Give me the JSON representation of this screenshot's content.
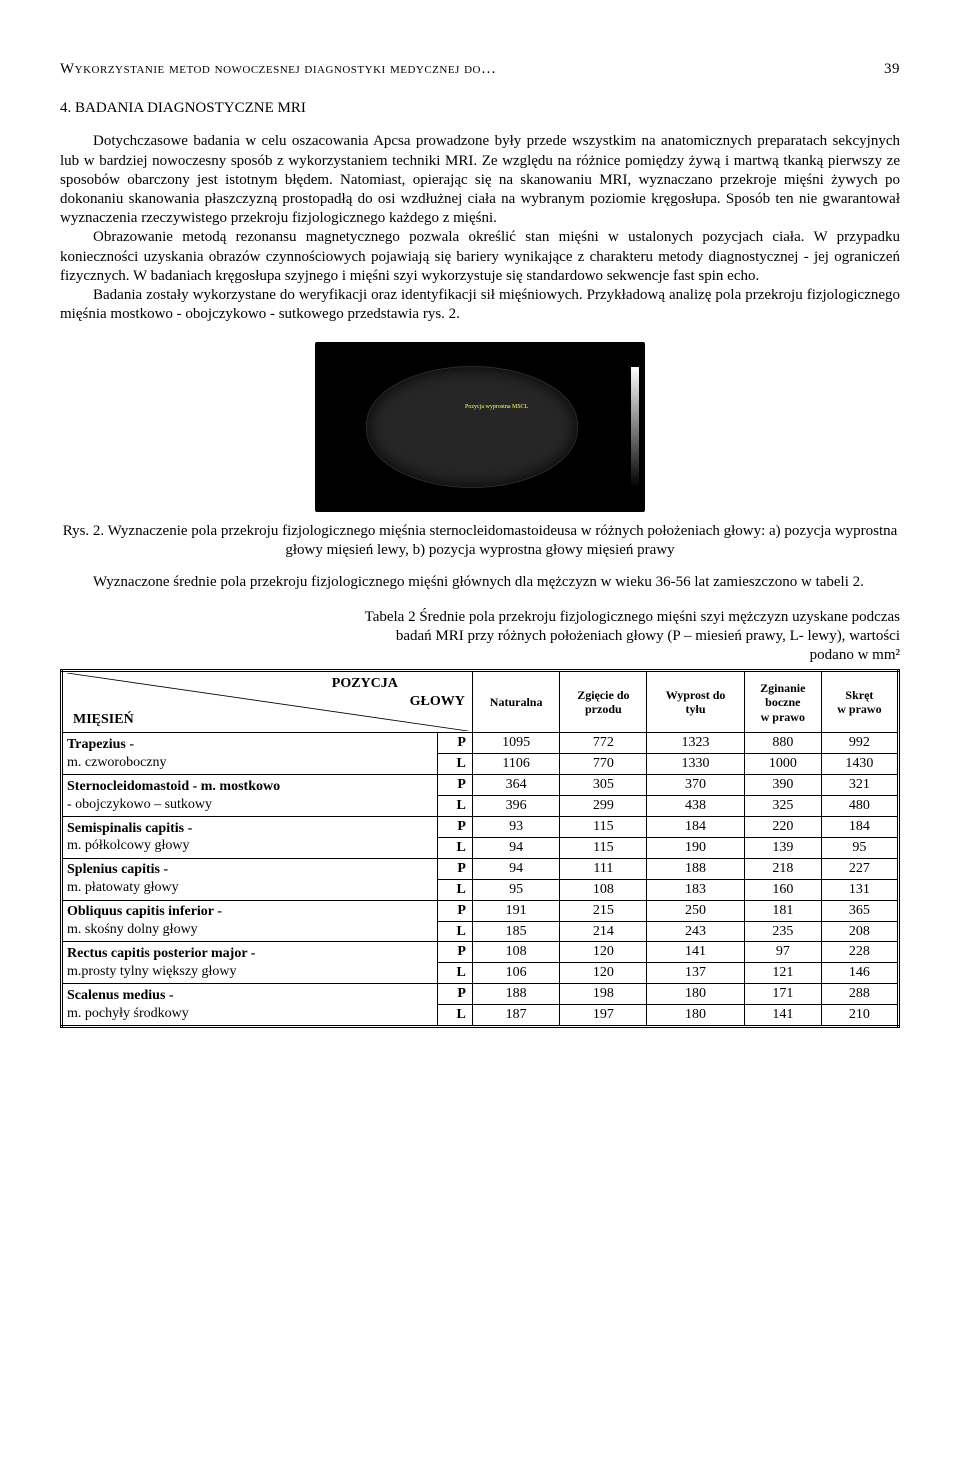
{
  "page": {
    "running_head": "Wykorzystanie metod nowoczesnej diagnostyki medycznej do…",
    "page_number": "39"
  },
  "section": {
    "number": "4.",
    "title": "BADANIA DIAGNOSTYCZNE MRI"
  },
  "paragraphs": {
    "p1": "Dotychczasowe badania w celu oszacowania Apcsa prowadzone były przede wszystkim na anatomicznych preparatach sekcyjnych lub w bardziej nowoczesny sposób z wykorzystaniem techniki MRI. Ze względu na różnice pomiędzy żywą i martwą tkanką pierwszy ze sposobów obarczony jest istotnym błędem. Natomiast, opierając się na skanowaniu MRI, wyznaczano przekroje mięśni żywych po dokonaniu skanowania płaszczyzną prostopadłą do osi wzdłużnej ciała na wybranym poziomie kręgosłupa. Sposób ten nie gwarantował wyznaczenia rzeczywistego przekroju fizjologicznego każdego z mięśni.",
    "p2": "Obrazowanie metodą rezonansu magnetycznego pozwala określić stan mięśni w ustalonych pozycjach ciała. W przypadku konieczności uzyskania obrazów czynnościowych pojawiają się bariery wynikające z charakteru metody diagnostycznej - jej ograniczeń fizycznych. W badaniach kręgosłupa szyjnego i mięśni szyi wykorzystuje się standardowo sekwencje fast spin echo.",
    "p3": "Badania zostały wykorzystane do weryfikacji oraz identyfikacji sił mięśniowych. Przykładową analizę pola przekroju fizjologicznego mięśnia mostkowo - obojczykowo - sutkowego przedstawia rys. 2.",
    "p4": "Wyznaczone średnie pola przekroju fizjologicznego mięśni głównych dla mężczyzn w wieku 36-56 lat zamieszczono w tabeli 2."
  },
  "figure": {
    "caption": "Rys. 2. Wyznaczenie pola przekroju fizjologicznego mięśnia sternocleidomastoideusa w różnych położeniach głowy: a) pozycja wyprostna głowy mięsień lewy, b) pozycja wyprostna głowy mięsień prawy",
    "overlay_label": "Pozycja wyprostna MSCL"
  },
  "table": {
    "caption_line1": "Tabela 2 Średnie pola przekroju fizjologicznego mięśni szyi mężczyzn uzyskane podczas",
    "caption_line2": "badań MRI przy różnych położeniach głowy (P – miesień prawy, L- lewy), wartości",
    "caption_line3": "podano w mm²",
    "headers": {
      "diag_top": "POZYCJA",
      "diag_right": "GŁOWY",
      "diag_bottom": "MIĘSIEŃ",
      "col1": "Naturalna",
      "col2a": "Zgięcie do",
      "col2b": "przodu",
      "col3a": "Wyprost do",
      "col3b": "tyłu",
      "col4a": "Zginanie",
      "col4b": "boczne",
      "col4c": "w prawo",
      "col5a": "Skręt",
      "col5b": "w prawo"
    },
    "rows": [
      {
        "top": "Trapezius -",
        "bot": "m. czworoboczny",
        "P": [
          "1095",
          "772",
          "1323",
          "880",
          "992"
        ],
        "L": [
          "1106",
          "770",
          "1330",
          "1000",
          "1430"
        ]
      },
      {
        "top": "Sternocleidomastoid - m. mostkowo",
        "bot": "- obojczykowo – sutkowy",
        "P": [
          "364",
          "305",
          "370",
          "390",
          "321"
        ],
        "L": [
          "396",
          "299",
          "438",
          "325",
          "480"
        ]
      },
      {
        "top": "Semispinalis capitis -",
        "bot": "m. półkolcowy głowy",
        "P": [
          "93",
          "115",
          "184",
          "220",
          "184"
        ],
        "L": [
          "94",
          "115",
          "190",
          "139",
          "95"
        ]
      },
      {
        "top": "Splenius capitis -",
        "bot": "m. płatowaty głowy",
        "P": [
          "94",
          "111",
          "188",
          "218",
          "227"
        ],
        "L": [
          "95",
          "108",
          "183",
          "160",
          "131"
        ]
      },
      {
        "top": "Obliquus capitis inferior -",
        "bot": "m. skośny dolny głowy",
        "P": [
          "191",
          "215",
          "250",
          "181",
          "365"
        ],
        "L": [
          "185",
          "214",
          "243",
          "235",
          "208"
        ]
      },
      {
        "top": "Rectus capitis posterior major -",
        "bot": "m.prosty tylny większy głowy",
        "P": [
          "108",
          "120",
          "141",
          "97",
          "228"
        ],
        "L": [
          "106",
          "120",
          "137",
          "121",
          "146"
        ]
      },
      {
        "top": "Scalenus medius -",
        "bot": "m. pochyły środkowy",
        "P": [
          "188",
          "198",
          "180",
          "171",
          "288"
        ],
        "L": [
          "187",
          "197",
          "180",
          "141",
          "210"
        ]
      }
    ]
  }
}
